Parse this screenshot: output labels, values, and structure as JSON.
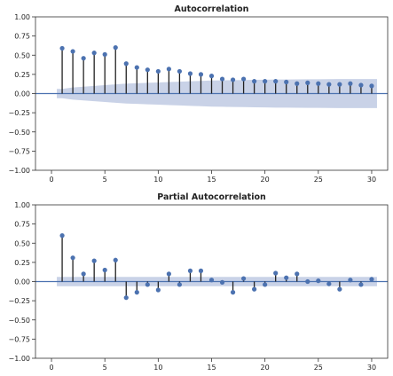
{
  "colors": {
    "marker": "#4c72b0",
    "confidence_band": "#c6d0e6",
    "zero_line": "#4c72b0",
    "stem": "#222222"
  },
  "chart_data": [
    {
      "type": "scatter",
      "style": "stem",
      "title": "Autocorrelation",
      "xlabel": "",
      "ylabel": "",
      "xlim": [
        -1.5,
        31.5
      ],
      "ylim": [
        -1.0,
        1.0
      ],
      "xticks": [
        0,
        5,
        10,
        15,
        20,
        25,
        30
      ],
      "xtick_labels": [
        "0",
        "5",
        "10",
        "15",
        "20",
        "25",
        "30"
      ],
      "yticks": [
        1.0,
        0.75,
        0.5,
        0.25,
        0.0,
        -0.25,
        -0.5,
        -0.75,
        -1.0
      ],
      "ytick_labels": [
        "1.00",
        "0.75",
        "0.50",
        "0.25",
        "0.00",
        "−0.25",
        "−0.50",
        "−0.75",
        "−1.00"
      ],
      "x": [
        1,
        2,
        3,
        4,
        5,
        6,
        7,
        8,
        9,
        10,
        11,
        12,
        13,
        14,
        15,
        16,
        17,
        18,
        19,
        20,
        21,
        22,
        23,
        24,
        25,
        26,
        27,
        28,
        29,
        30
      ],
      "values": [
        0.59,
        0.55,
        0.46,
        0.53,
        0.51,
        0.6,
        0.39,
        0.34,
        0.31,
        0.29,
        0.32,
        0.29,
        0.26,
        0.25,
        0.23,
        0.19,
        0.18,
        0.19,
        0.16,
        0.16,
        0.16,
        0.15,
        0.13,
        0.14,
        0.13,
        0.12,
        0.12,
        0.13,
        0.11,
        0.1
      ],
      "confidence_band": {
        "x": [
          0.5,
          1,
          2,
          3,
          4,
          5,
          6,
          7,
          8,
          9,
          10,
          11,
          12,
          13,
          14,
          15,
          16,
          17,
          18,
          19,
          20,
          21,
          22,
          23,
          24,
          25,
          26,
          27,
          28,
          29,
          30,
          30.5
        ],
        "upper": [
          0.06,
          0.06,
          0.08,
          0.09,
          0.1,
          0.11,
          0.12,
          0.13,
          0.135,
          0.14,
          0.145,
          0.15,
          0.155,
          0.16,
          0.165,
          0.17,
          0.172,
          0.175,
          0.177,
          0.179,
          0.181,
          0.183,
          0.184,
          0.185,
          0.186,
          0.187,
          0.188,
          0.189,
          0.19,
          0.19,
          0.19,
          0.19
        ]
      },
      "grid": false,
      "legend": "none"
    },
    {
      "type": "scatter",
      "style": "stem",
      "title": "Partial Autocorrelation",
      "xlabel": "",
      "ylabel": "",
      "xlim": [
        -1.5,
        31.5
      ],
      "ylim": [
        -1.0,
        1.0
      ],
      "xticks": [
        0,
        5,
        10,
        15,
        20,
        25,
        30
      ],
      "xtick_labels": [
        "0",
        "5",
        "10",
        "15",
        "20",
        "25",
        "30"
      ],
      "yticks": [
        1.0,
        0.75,
        0.5,
        0.25,
        0.0,
        -0.25,
        -0.5,
        -0.75,
        -1.0
      ],
      "ytick_labels": [
        "1.00",
        "0.75",
        "0.50",
        "0.25",
        "0.00",
        "−0.25",
        "−0.50",
        "−0.75",
        "−1.00"
      ],
      "x": [
        1,
        2,
        3,
        4,
        5,
        6,
        7,
        8,
        9,
        10,
        11,
        12,
        13,
        14,
        15,
        16,
        17,
        18,
        19,
        20,
        21,
        22,
        23,
        24,
        25,
        26,
        27,
        28,
        29,
        30
      ],
      "values": [
        0.6,
        0.31,
        0.1,
        0.27,
        0.15,
        0.28,
        -0.21,
        -0.14,
        -0.04,
        -0.11,
        0.1,
        -0.04,
        0.14,
        0.14,
        0.02,
        -0.01,
        -0.14,
        0.04,
        -0.1,
        -0.04,
        0.11,
        0.05,
        0.1,
        0.0,
        0.01,
        -0.03,
        -0.1,
        0.02,
        -0.04,
        0.03
      ],
      "confidence_band": {
        "x": [
          0.5,
          30.5
        ],
        "upper": [
          0.06,
          0.06
        ]
      },
      "grid": false,
      "legend": "none"
    }
  ]
}
